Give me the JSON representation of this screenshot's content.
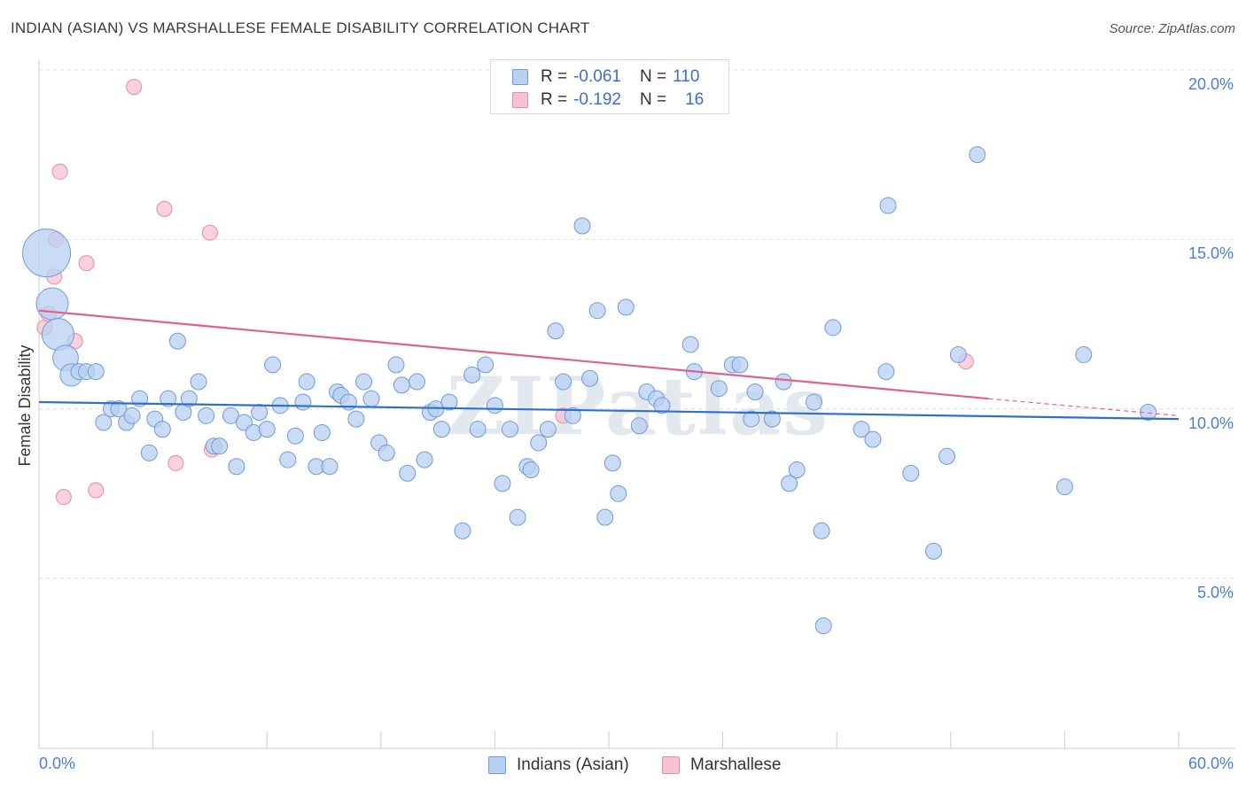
{
  "title": "INDIAN (ASIAN) VS MARSHALLESE FEMALE DISABILITY CORRELATION CHART",
  "source": "Source: ZipAtlas.com",
  "watermark": "ZIPatlas",
  "legend": {
    "rows": [
      {
        "r_label": "R =",
        "r_value": "-0.061",
        "n_label": "N =",
        "n_value": "110"
      },
      {
        "r_label": "R =",
        "r_value": "-0.192",
        "n_label": "N =",
        "n_value": "16"
      }
    ]
  },
  "bottom_legend": {
    "series1": "Indians (Asian)",
    "series2": "Marshallese"
  },
  "colors": {
    "blue_fill": "#b8d0f2",
    "blue_stroke": "#6f9ad8",
    "blue_line": "#2f6fd0",
    "pink_fill": "#f7c3d3",
    "pink_stroke": "#e88aa6",
    "pink_line": "#e0628c",
    "tick_text": "#4a7fd6",
    "grid": "#dddddd"
  },
  "chart_data": {
    "type": "scatter",
    "title": "INDIAN (ASIAN) VS MARSHALLESE FEMALE DISABILITY CORRELATION CHART",
    "xlabel": "",
    "ylabel": "Female Disability",
    "xlim": [
      0,
      60
    ],
    "ylim": [
      0,
      21
    ],
    "x_tick_labels": [
      "0.0%",
      "60.0%"
    ],
    "y_tick_values": [
      5,
      10,
      15,
      20
    ],
    "y_tick_labels": [
      "5.0%",
      "10.0%",
      "15.0%",
      "20.0%"
    ],
    "grid": true,
    "legend_position": "top-center",
    "series": [
      {
        "name": "Indians (Asian)",
        "r": -0.061,
        "n": 110,
        "trend": {
          "x": [
            0,
            60
          ],
          "y": [
            10.2,
            9.7
          ]
        },
        "points": [
          {
            "x": 0.4,
            "y": 14.6,
            "s": 3
          },
          {
            "x": 0.7,
            "y": 13.1,
            "s": 2
          },
          {
            "x": 1.0,
            "y": 12.2,
            "s": 2
          },
          {
            "x": 1.4,
            "y": 11.5,
            "s": 1.6
          },
          {
            "x": 1.7,
            "y": 11.0,
            "s": 1.4
          },
          {
            "x": 2.1,
            "y": 11.1,
            "s": 1
          },
          {
            "x": 2.5,
            "y": 11.1,
            "s": 1
          },
          {
            "x": 3.0,
            "y": 11.1,
            "s": 1
          },
          {
            "x": 3.4,
            "y": 9.6,
            "s": 1
          },
          {
            "x": 3.8,
            "y": 10.0,
            "s": 1
          },
          {
            "x": 4.2,
            "y": 10.0,
            "s": 1
          },
          {
            "x": 4.6,
            "y": 9.6,
            "s": 1
          },
          {
            "x": 4.9,
            "y": 9.8,
            "s": 1
          },
          {
            "x": 5.3,
            "y": 10.3,
            "s": 1
          },
          {
            "x": 5.8,
            "y": 8.7,
            "s": 1
          },
          {
            "x": 6.1,
            "y": 9.7,
            "s": 1
          },
          {
            "x": 6.5,
            "y": 9.4,
            "s": 1
          },
          {
            "x": 6.8,
            "y": 10.3,
            "s": 1
          },
          {
            "x": 7.3,
            "y": 12.0,
            "s": 1
          },
          {
            "x": 7.6,
            "y": 9.9,
            "s": 1
          },
          {
            "x": 7.9,
            "y": 10.3,
            "s": 1
          },
          {
            "x": 8.4,
            "y": 10.8,
            "s": 1
          },
          {
            "x": 8.8,
            "y": 9.8,
            "s": 1
          },
          {
            "x": 9.2,
            "y": 8.9,
            "s": 1
          },
          {
            "x": 9.5,
            "y": 8.9,
            "s": 1
          },
          {
            "x": 10.1,
            "y": 9.8,
            "s": 1
          },
          {
            "x": 10.4,
            "y": 8.3,
            "s": 1
          },
          {
            "x": 10.8,
            "y": 9.6,
            "s": 1
          },
          {
            "x": 11.3,
            "y": 9.3,
            "s": 1
          },
          {
            "x": 11.6,
            "y": 9.9,
            "s": 1
          },
          {
            "x": 12.0,
            "y": 9.4,
            "s": 1
          },
          {
            "x": 12.3,
            "y": 11.3,
            "s": 1
          },
          {
            "x": 12.7,
            "y": 10.1,
            "s": 1
          },
          {
            "x": 13.1,
            "y": 8.5,
            "s": 1
          },
          {
            "x": 13.5,
            "y": 9.2,
            "s": 1
          },
          {
            "x": 13.9,
            "y": 10.2,
            "s": 1
          },
          {
            "x": 14.1,
            "y": 10.8,
            "s": 1
          },
          {
            "x": 14.6,
            "y": 8.3,
            "s": 1
          },
          {
            "x": 14.9,
            "y": 9.3,
            "s": 1
          },
          {
            "x": 15.3,
            "y": 8.3,
            "s": 1
          },
          {
            "x": 15.7,
            "y": 10.5,
            "s": 1
          },
          {
            "x": 15.9,
            "y": 10.4,
            "s": 1
          },
          {
            "x": 16.3,
            "y": 10.2,
            "s": 1
          },
          {
            "x": 16.7,
            "y": 9.7,
            "s": 1
          },
          {
            "x": 17.1,
            "y": 10.8,
            "s": 1
          },
          {
            "x": 17.5,
            "y": 10.3,
            "s": 1
          },
          {
            "x": 17.9,
            "y": 9.0,
            "s": 1
          },
          {
            "x": 18.3,
            "y": 8.7,
            "s": 1
          },
          {
            "x": 18.8,
            "y": 11.3,
            "s": 1
          },
          {
            "x": 19.1,
            "y": 10.7,
            "s": 1
          },
          {
            "x": 19.4,
            "y": 8.1,
            "s": 1
          },
          {
            "x": 19.9,
            "y": 10.8,
            "s": 1
          },
          {
            "x": 20.3,
            "y": 8.5,
            "s": 1
          },
          {
            "x": 20.6,
            "y": 9.9,
            "s": 1
          },
          {
            "x": 20.9,
            "y": 10.0,
            "s": 1
          },
          {
            "x": 21.2,
            "y": 9.4,
            "s": 1
          },
          {
            "x": 21.6,
            "y": 10.2,
            "s": 1
          },
          {
            "x": 22.3,
            "y": 6.4,
            "s": 1
          },
          {
            "x": 22.8,
            "y": 11.0,
            "s": 1
          },
          {
            "x": 23.1,
            "y": 9.4,
            "s": 1
          },
          {
            "x": 23.5,
            "y": 11.3,
            "s": 1
          },
          {
            "x": 24.0,
            "y": 10.1,
            "s": 1
          },
          {
            "x": 24.4,
            "y": 7.8,
            "s": 1
          },
          {
            "x": 24.8,
            "y": 9.4,
            "s": 1
          },
          {
            "x": 25.2,
            "y": 6.8,
            "s": 1
          },
          {
            "x": 25.7,
            "y": 8.3,
            "s": 1
          },
          {
            "x": 25.9,
            "y": 8.2,
            "s": 1
          },
          {
            "x": 26.3,
            "y": 9.0,
            "s": 1
          },
          {
            "x": 26.8,
            "y": 9.4,
            "s": 1
          },
          {
            "x": 27.2,
            "y": 12.3,
            "s": 1
          },
          {
            "x": 27.6,
            "y": 10.8,
            "s": 1
          },
          {
            "x": 28.1,
            "y": 9.8,
            "s": 1
          },
          {
            "x": 28.6,
            "y": 15.4,
            "s": 1
          },
          {
            "x": 29.0,
            "y": 10.9,
            "s": 1
          },
          {
            "x": 29.4,
            "y": 12.9,
            "s": 1
          },
          {
            "x": 29.8,
            "y": 6.8,
            "s": 1
          },
          {
            "x": 30.2,
            "y": 8.4,
            "s": 1
          },
          {
            "x": 30.5,
            "y": 7.5,
            "s": 1
          },
          {
            "x": 30.9,
            "y": 13.0,
            "s": 1
          },
          {
            "x": 31.6,
            "y": 9.5,
            "s": 1
          },
          {
            "x": 32.0,
            "y": 10.5,
            "s": 1
          },
          {
            "x": 32.5,
            "y": 10.3,
            "s": 1
          },
          {
            "x": 32.8,
            "y": 10.1,
            "s": 1
          },
          {
            "x": 34.3,
            "y": 11.9,
            "s": 1
          },
          {
            "x": 34.5,
            "y": 11.1,
            "s": 1
          },
          {
            "x": 35.8,
            "y": 10.6,
            "s": 1
          },
          {
            "x": 36.5,
            "y": 11.3,
            "s": 1
          },
          {
            "x": 36.9,
            "y": 11.3,
            "s": 1
          },
          {
            "x": 37.5,
            "y": 9.7,
            "s": 1
          },
          {
            "x": 37.7,
            "y": 10.5,
            "s": 1
          },
          {
            "x": 38.6,
            "y": 9.7,
            "s": 1
          },
          {
            "x": 39.2,
            "y": 10.8,
            "s": 1
          },
          {
            "x": 39.5,
            "y": 7.8,
            "s": 1
          },
          {
            "x": 39.9,
            "y": 8.2,
            "s": 1
          },
          {
            "x": 40.8,
            "y": 10.2,
            "s": 1
          },
          {
            "x": 41.2,
            "y": 6.4,
            "s": 1
          },
          {
            "x": 41.3,
            "y": 3.6,
            "s": 1
          },
          {
            "x": 41.8,
            "y": 12.4,
            "s": 1
          },
          {
            "x": 43.3,
            "y": 9.4,
            "s": 1
          },
          {
            "x": 43.9,
            "y": 9.1,
            "s": 1
          },
          {
            "x": 44.6,
            "y": 11.1,
            "s": 1
          },
          {
            "x": 44.7,
            "y": 16.0,
            "s": 1
          },
          {
            "x": 45.9,
            "y": 8.1,
            "s": 1
          },
          {
            "x": 47.1,
            "y": 5.8,
            "s": 1
          },
          {
            "x": 47.8,
            "y": 8.6,
            "s": 1
          },
          {
            "x": 48.4,
            "y": 11.6,
            "s": 1
          },
          {
            "x": 49.4,
            "y": 17.5,
            "s": 1
          },
          {
            "x": 54.0,
            "y": 7.7,
            "s": 1
          },
          {
            "x": 55.0,
            "y": 11.6,
            "s": 1
          },
          {
            "x": 58.4,
            "y": 9.9,
            "s": 1
          }
        ]
      },
      {
        "name": "Marshallese",
        "r": -0.192,
        "n": 16,
        "trend": {
          "x": [
            0,
            50
          ],
          "y": [
            12.9,
            10.3
          ]
        },
        "trend_extension": {
          "x": [
            50,
            60
          ],
          "y": [
            10.3,
            9.8
          ]
        },
        "points": [
          {
            "x": 0.3,
            "y": 12.4,
            "s": 1
          },
          {
            "x": 0.5,
            "y": 12.8,
            "s": 1
          },
          {
            "x": 0.8,
            "y": 13.9,
            "s": 1
          },
          {
            "x": 0.9,
            "y": 15.0,
            "s": 1
          },
          {
            "x": 1.1,
            "y": 17.0,
            "s": 1
          },
          {
            "x": 1.3,
            "y": 7.4,
            "s": 1
          },
          {
            "x": 1.9,
            "y": 12.0,
            "s": 1
          },
          {
            "x": 2.5,
            "y": 14.3,
            "s": 1
          },
          {
            "x": 3.0,
            "y": 7.6,
            "s": 1
          },
          {
            "x": 5.0,
            "y": 19.5,
            "s": 1
          },
          {
            "x": 6.6,
            "y": 15.9,
            "s": 1
          },
          {
            "x": 7.2,
            "y": 8.4,
            "s": 1
          },
          {
            "x": 9.0,
            "y": 15.2,
            "s": 1
          },
          {
            "x": 9.1,
            "y": 8.8,
            "s": 1
          },
          {
            "x": 27.6,
            "y": 9.8,
            "s": 1
          },
          {
            "x": 48.8,
            "y": 11.4,
            "s": 1
          }
        ]
      }
    ]
  }
}
